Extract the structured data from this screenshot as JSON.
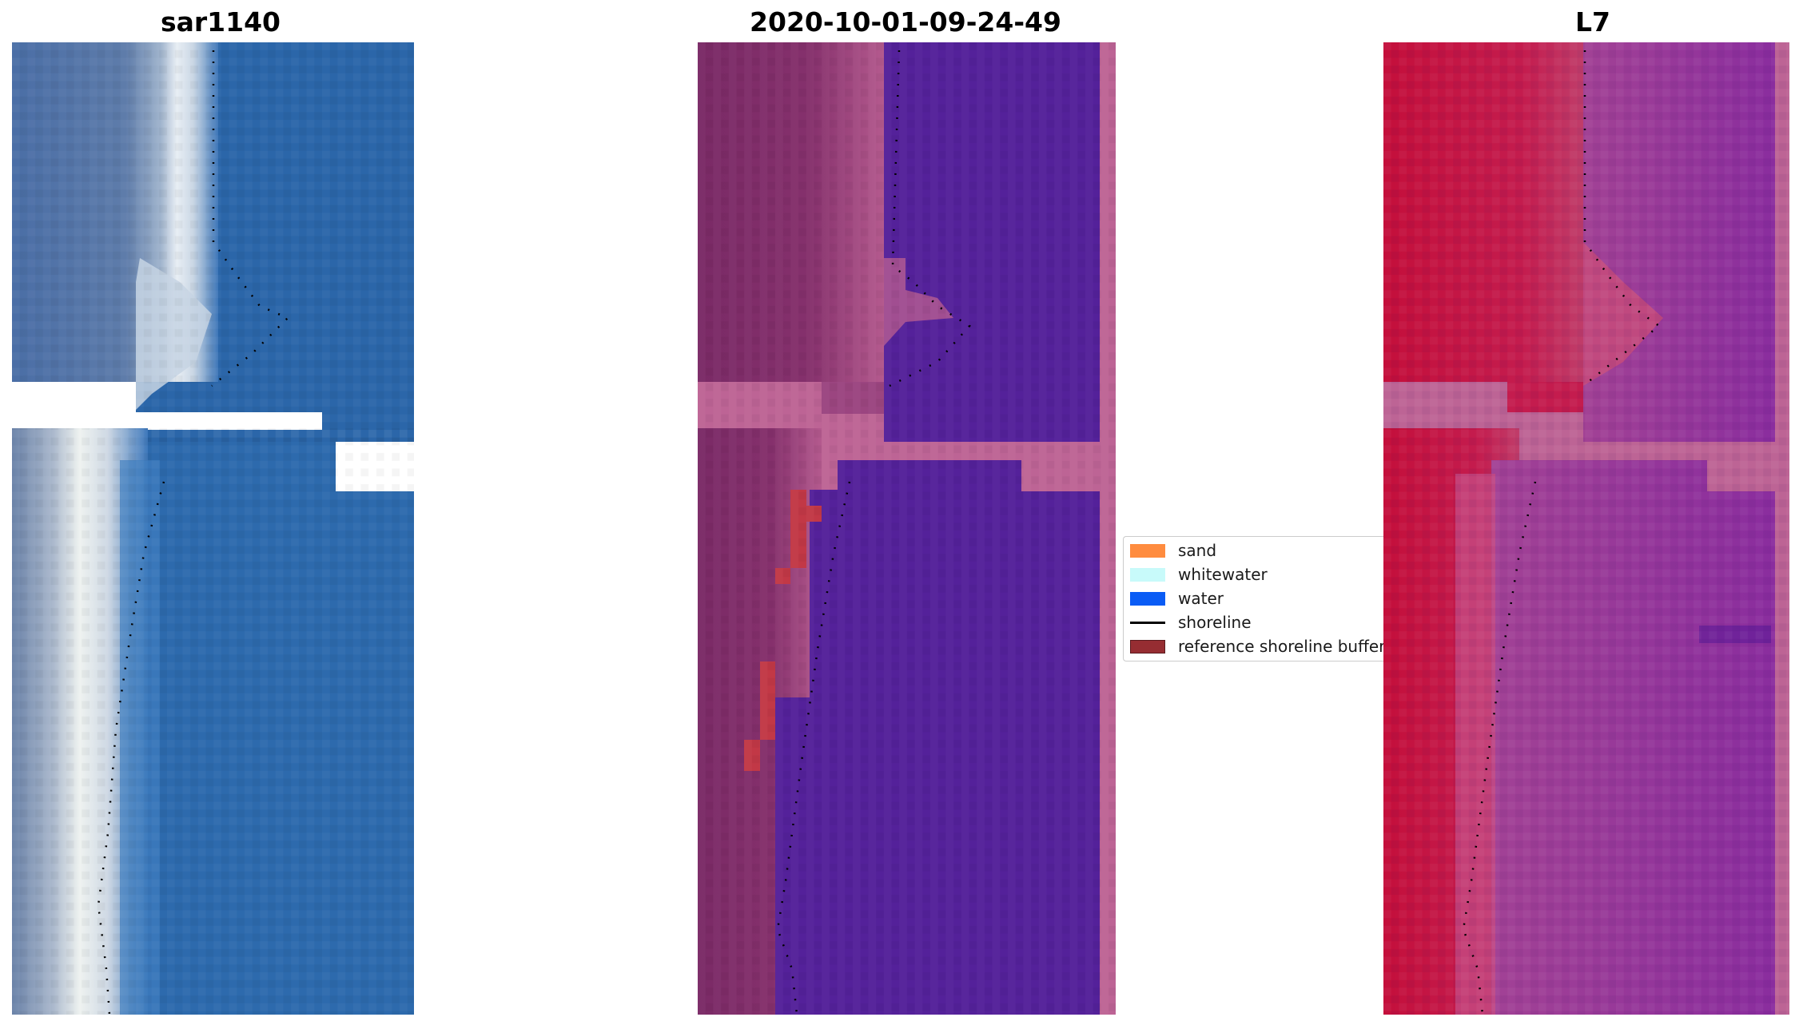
{
  "titles": {
    "rgb": "sar1140",
    "classified": "2020-10-01-09-24-49",
    "index": "L7"
  },
  "legend": {
    "items": [
      {
        "label": "sand",
        "color": "#ff8c3f"
      },
      {
        "label": "whitewater",
        "color": "#c8fafa"
      },
      {
        "label": "water",
        "color": "#0a5cf5"
      },
      {
        "label": "shoreline",
        "color": "#000000"
      },
      {
        "label": "reference shoreline buffer",
        "color": "#962d32"
      }
    ]
  },
  "colors": {
    "rgb_water": "#2a65a8",
    "rgb_land": "#5a77a6",
    "rgb_whitewater": "#e6ecf2",
    "class_water": "#54219a",
    "class_land": "#7b2967",
    "class_nodata": "#bd6495",
    "class_buffer": "#c23846",
    "l7_land": "#c8103e",
    "l7_water": "#8a2d9e",
    "l7_nodata": "#bd6495"
  },
  "icons": {
    "shoreline": "dotted-shoreline-line"
  }
}
